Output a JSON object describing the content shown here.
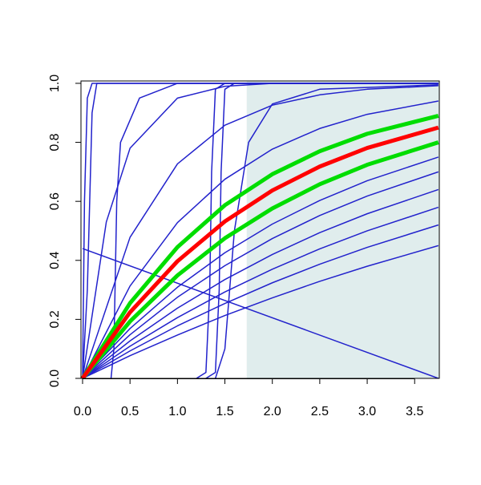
{
  "chart_data": {
    "type": "line",
    "xlim": [
      -0.017,
      3.76
    ],
    "ylim": [
      0,
      1.008
    ],
    "xticks": [
      {
        "value": 0,
        "label": "0.0"
      },
      0.5,
      {
        "value": 1,
        "label": "1.0"
      },
      1.5,
      {
        "value": 2,
        "label": "2.0"
      },
      2.5,
      {
        "value": 3,
        "label": "3.0"
      },
      3.5
    ],
    "yticks": [
      {
        "value": 0,
        "label": "0.0"
      },
      0.2,
      0.4,
      0.6,
      0.8,
      {
        "value": 1,
        "label": "1.0"
      }
    ],
    "shaded_region": {
      "xmin": 1.73,
      "color": "#e0eded"
    },
    "x": [
      0,
      0.5,
      1,
      1.5,
      2,
      2.5,
      3,
      3.75
    ],
    "series": [
      {
        "color": "#2222cc",
        "width": 1.5,
        "x": [
          0,
          0.02,
          0.05,
          0.1,
          3.75
        ],
        "values": [
          0,
          0.6,
          0.95,
          1,
          1
        ]
      },
      {
        "color": "#2222cc",
        "width": 1.5,
        "x": [
          0,
          0.05,
          0.1,
          0.15,
          3.75
        ],
        "values": [
          0,
          0.3,
          0.9,
          1,
          1
        ]
      },
      {
        "color": "#2222cc",
        "width": 1.5,
        "x": [
          0.3,
          0.33,
          0.36,
          0.4,
          0.6,
          1,
          3.75
        ],
        "values": [
          0,
          0.1,
          0.6,
          0.8,
          0.95,
          1,
          1
        ]
      },
      {
        "color": "#2222cc",
        "width": 1.5,
        "x": [
          0,
          0.25,
          0.5,
          1,
          1.5,
          2,
          3.75
        ],
        "values": [
          0,
          0.53,
          0.78,
          0.95,
          0.99,
          1,
          1
        ]
      },
      {
        "color": "#2222cc",
        "width": 1.5,
        "x": [
          1.2,
          1.3,
          1.34,
          1.36,
          1.4,
          1.5,
          3.75
        ],
        "values": [
          0,
          0.02,
          0.3,
          0.7,
          0.98,
          1,
          1
        ]
      },
      {
        "color": "#2222cc",
        "width": 1.5,
        "x": [
          1.3,
          1.4,
          1.44,
          1.46,
          1.5,
          1.6,
          3.75
        ],
        "values": [
          0,
          0.02,
          0.3,
          0.7,
          0.98,
          1,
          1
        ]
      },
      {
        "color": "#2222cc",
        "width": 1.5,
        "x": [
          1.4,
          1.5,
          1.6,
          1.75,
          2,
          2.5,
          3.75
        ],
        "values": [
          0,
          0.1,
          0.5,
          0.8,
          0.93,
          0.98,
          0.995
        ]
      },
      {
        "color": "#2222cc",
        "width": 1.5,
        "values": [
          0,
          0.478,
          0.727,
          0.858,
          0.926,
          0.961,
          0.98,
          0.992
        ]
      },
      {
        "color": "#2222cc",
        "width": 1.5,
        "values": [
          0,
          0.313,
          0.528,
          0.675,
          0.777,
          0.847,
          0.895,
          0.94
        ]
      },
      {
        "color": "#2222cc",
        "width": 1.5,
        "x": [
          0,
          3.75
        ],
        "values": [
          0.44,
          0
        ]
      },
      {
        "color": "#2222cc",
        "width": 1.5,
        "values": [
          0,
          0.077,
          0.147,
          0.213,
          0.273,
          0.329,
          0.38,
          0.45
        ]
      },
      {
        "color": "#2222cc",
        "width": 1.5,
        "values": [
          0,
          0.093,
          0.178,
          0.254,
          0.324,
          0.387,
          0.444,
          0.52
        ]
      },
      {
        "color": "#2222cc",
        "width": 1.5,
        "values": [
          0,
          0.109,
          0.206,
          0.293,
          0.37,
          0.439,
          0.5,
          0.58
        ]
      },
      {
        "color": "#2222cc",
        "width": 1.5,
        "values": [
          0,
          0.127,
          0.238,
          0.335,
          0.42,
          0.494,
          0.558,
          0.64
        ]
      },
      {
        "color": "#2222cc",
        "width": 1.5,
        "values": [
          0,
          0.148,
          0.275,
          0.382,
          0.474,
          0.552,
          0.618,
          0.7
        ]
      },
      {
        "color": "#2222cc",
        "width": 1.5,
        "values": [
          0,
          0.169,
          0.309,
          0.426,
          0.523,
          0.603,
          0.67,
          0.75
        ]
      },
      {
        "color": "#00dd00",
        "width": 5,
        "values": [
          0,
          0.255,
          0.445,
          0.587,
          0.692,
          0.77,
          0.829,
          0.89
        ]
      },
      {
        "color": "#00dd00",
        "width": 5,
        "values": [
          0,
          0.193,
          0.349,
          0.475,
          0.576,
          0.658,
          0.724,
          0.8
        ]
      },
      {
        "color": "#ff0000",
        "width": 5,
        "values": [
          0,
          0.224,
          0.397,
          0.532,
          0.637,
          0.718,
          0.781,
          0.85
        ]
      }
    ]
  }
}
